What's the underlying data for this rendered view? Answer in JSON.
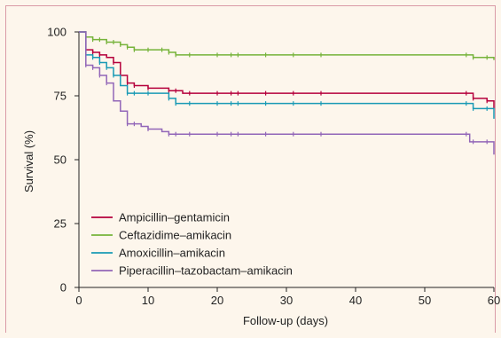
{
  "chart_data": {
    "type": "line",
    "subtype": "kaplan-meier",
    "xlabel": "Follow-up (days)",
    "ylabel": "Survival (%)",
    "xlim": [
      0,
      60
    ],
    "ylim": [
      0,
      100
    ],
    "xticks": [
      0,
      10,
      20,
      30,
      40,
      50,
      60
    ],
    "yticks": [
      0,
      25,
      50,
      75,
      100
    ],
    "grid": false,
    "legend_position": "lower-left",
    "series": [
      {
        "name": "Ampicillin–gentamicin",
        "color": "#b5003c",
        "steps": [
          [
            0,
            100
          ],
          [
            1,
            93
          ],
          [
            2,
            92
          ],
          [
            3,
            91
          ],
          [
            4,
            90
          ],
          [
            5,
            88
          ],
          [
            6,
            83
          ],
          [
            7,
            80
          ],
          [
            8,
            79
          ],
          [
            10,
            78
          ],
          [
            13,
            77
          ],
          [
            15,
            76
          ],
          [
            56,
            76
          ],
          [
            57,
            74
          ],
          [
            59,
            73
          ],
          [
            60,
            70
          ]
        ],
        "censor_x": [
          1,
          2,
          3,
          5,
          7,
          8,
          10,
          13,
          14,
          16,
          20,
          22,
          23,
          27,
          31,
          35,
          56,
          57,
          59
        ]
      },
      {
        "name": "Ceftazidime–amikacin",
        "color": "#76b33a",
        "steps": [
          [
            0,
            100
          ],
          [
            1,
            98
          ],
          [
            2,
            97
          ],
          [
            3,
            97
          ],
          [
            4,
            96
          ],
          [
            5,
            96
          ],
          [
            6,
            95
          ],
          [
            7,
            94
          ],
          [
            8,
            93
          ],
          [
            10,
            93
          ],
          [
            13,
            92
          ],
          [
            14,
            91
          ],
          [
            56,
            91
          ],
          [
            57,
            90
          ],
          [
            59,
            90
          ],
          [
            60,
            89
          ]
        ],
        "censor_x": [
          1,
          2,
          3,
          4,
          5,
          6,
          7,
          8,
          10,
          12,
          13,
          14,
          16,
          20,
          22,
          23,
          27,
          31,
          35,
          56,
          57,
          59
        ]
      },
      {
        "name": "Amoxicillin–amikacin",
        "color": "#1a9ab5",
        "steps": [
          [
            0,
            100
          ],
          [
            1,
            91
          ],
          [
            2,
            90
          ],
          [
            3,
            88
          ],
          [
            4,
            86
          ],
          [
            5,
            83
          ],
          [
            6,
            79
          ],
          [
            7,
            76
          ],
          [
            9,
            76
          ],
          [
            13,
            74
          ],
          [
            14,
            72
          ],
          [
            56,
            72
          ],
          [
            57,
            70
          ],
          [
            59,
            70
          ],
          [
            60,
            66
          ]
        ],
        "censor_x": [
          1,
          2,
          3,
          4,
          5,
          7,
          8,
          10,
          13,
          14,
          16,
          20,
          22,
          23,
          27,
          31,
          35,
          56,
          57,
          59
        ]
      },
      {
        "name": "Piperacillin–tazobactam–amikacin",
        "color": "#9266b8",
        "steps": [
          [
            0,
            100
          ],
          [
            1,
            87
          ],
          [
            2,
            86
          ],
          [
            3,
            83
          ],
          [
            4,
            80
          ],
          [
            5,
            73
          ],
          [
            6,
            69
          ],
          [
            7,
            64
          ],
          [
            9,
            63
          ],
          [
            10,
            62
          ],
          [
            12,
            61
          ],
          [
            13,
            60
          ],
          [
            56,
            60
          ],
          [
            56.5,
            57
          ],
          [
            60,
            52
          ]
        ],
        "censor_x": [
          1,
          2,
          3,
          4,
          7,
          8,
          10,
          13,
          14,
          16,
          20,
          22,
          23,
          27,
          31,
          35,
          56,
          57,
          59
        ]
      }
    ]
  }
}
